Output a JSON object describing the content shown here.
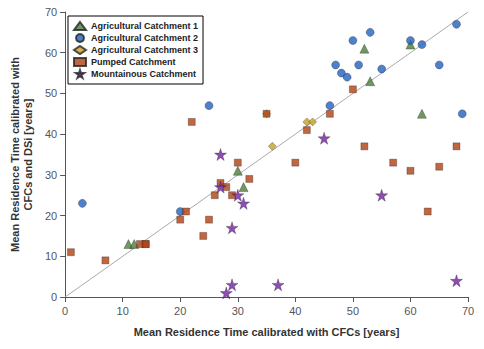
{
  "chart_data": {
    "type": "scatter",
    "xlabel": "Mean Residence Time calibrated with CFCs [years]",
    "ylabel": "Mean Residence Time calibrated with\nCFCs and DSi [years]",
    "xlim": [
      0,
      70
    ],
    "ylim": [
      0,
      70
    ],
    "xticks": [
      0,
      10,
      20,
      30,
      40,
      50,
      60,
      70
    ],
    "yticks": [
      0,
      10,
      20,
      30,
      40,
      50,
      60,
      70
    ],
    "grid": false,
    "legend": "upper left",
    "diagonal": {
      "x": [
        0,
        70
      ],
      "y": [
        0,
        70
      ],
      "color": "#aaaaaa"
    },
    "series": [
      {
        "name": "Agricultural Catchment 1",
        "color": "#4d7c3a",
        "marker": "triangle",
        "x": [
          11,
          12,
          30,
          31,
          52,
          53,
          60,
          62
        ],
        "y": [
          13,
          13,
          31,
          27,
          61,
          53,
          62,
          45
        ]
      },
      {
        "name": "Agricultural Catchment 2",
        "color": "#2060c0",
        "marker": "circle",
        "x": [
          3,
          20,
          25,
          46,
          47,
          48,
          49,
          50,
          51,
          53,
          55,
          60,
          62,
          65,
          68,
          69
        ],
        "y": [
          23,
          21,
          47,
          47,
          57,
          55,
          54,
          63,
          57,
          65,
          56,
          63,
          62,
          57,
          67,
          45
        ]
      },
      {
        "name": "Agricultural Catchment 3",
        "color": "#c8a020",
        "marker": "diamond",
        "x": [
          35,
          36,
          42,
          43
        ],
        "y": [
          45,
          37,
          43,
          43
        ]
      },
      {
        "name": "Pumped Catchment",
        "color": "#b04010",
        "marker": "square",
        "x": [
          1,
          7,
          13,
          14,
          14,
          20,
          21,
          22,
          24,
          25,
          26,
          27,
          28,
          29,
          30,
          32,
          35,
          40,
          42,
          46,
          50,
          52,
          57,
          60,
          63,
          65,
          68
        ],
        "y": [
          11,
          9,
          13,
          13,
          13,
          19,
          21,
          43,
          15,
          19,
          25,
          28,
          27,
          25,
          33,
          29,
          45,
          33,
          41,
          45,
          51,
          37,
          33,
          31,
          21,
          32,
          37
        ]
      },
      {
        "name": "Mountainous Catchment",
        "color": "#7020a0",
        "marker": "star",
        "x": [
          27,
          27,
          28,
          29,
          29,
          30,
          31,
          37,
          45,
          55,
          68
        ],
        "y": [
          27,
          35,
          1,
          3,
          17,
          25,
          23,
          3,
          39,
          25,
          4
        ]
      }
    ]
  }
}
